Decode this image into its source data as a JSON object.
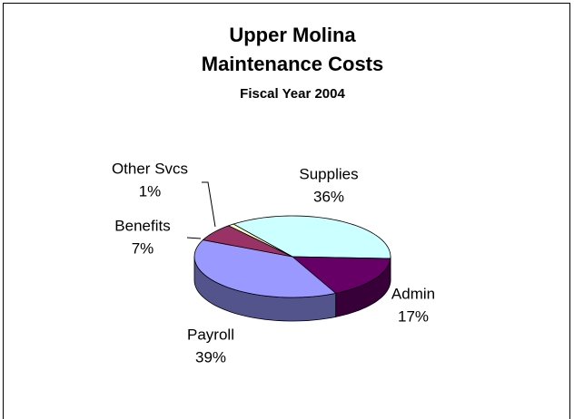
{
  "chart_data": {
    "type": "pie3d",
    "title": [
      "Upper Molina",
      "Maintenance Costs"
    ],
    "subtitle": "Fiscal Year 2004",
    "categories": [
      "Supplies",
      "Admin",
      "Payroll",
      "Benefits",
      "Other Svcs"
    ],
    "values": [
      36,
      17,
      39,
      7,
      1
    ],
    "value_labels": [
      "36%",
      "17%",
      "39%",
      "7%",
      "1%"
    ],
    "colors": [
      "#ccffff",
      "#660066",
      "#9999ff",
      "#993366",
      "#ffffcc"
    ]
  }
}
